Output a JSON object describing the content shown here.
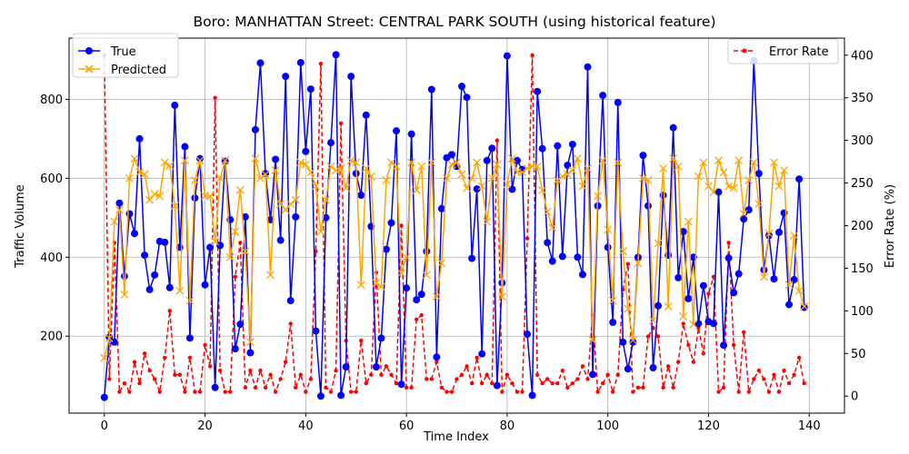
{
  "chart_data": {
    "type": "line",
    "title": "Boro: MANHATTAN Street: CENTRAL PARK SOUTH (using historical feature)",
    "xlabel": "Time Index",
    "ylabel": "Traffic Volume",
    "y2label": "Error Rate (%)",
    "xlim": [
      -7,
      147
    ],
    "ylim": [
      5,
      955
    ],
    "y2lim": [
      -20,
      420
    ],
    "xticks": [
      0,
      20,
      40,
      60,
      80,
      100,
      120,
      140
    ],
    "yticks": [
      200,
      400,
      600,
      800
    ],
    "y2ticks": [
      0,
      50,
      100,
      150,
      200,
      250,
      300,
      350,
      400
    ],
    "grid": true,
    "legend_left": {
      "position": "upper-left",
      "entries": [
        "True",
        "Predicted"
      ]
    },
    "legend_right": {
      "position": "upper-right",
      "entries": [
        "Error Rate"
      ]
    },
    "series": [
      {
        "name": "True",
        "axis": "left",
        "color": "#0000ff",
        "marker": "circle",
        "linestyle": "solid",
        "values": [
          45,
          197,
          185,
          537,
          352,
          510,
          460,
          700,
          405,
          318,
          355,
          440,
          438,
          323,
          785,
          425,
          680,
          195,
          550,
          650,
          330,
          425,
          70,
          430,
          643,
          495,
          168,
          230,
          502,
          158,
          723,
          892,
          612,
          495,
          648,
          443,
          858,
          290,
          502,
          893,
          668,
          826,
          213,
          48,
          500,
          690,
          913,
          50,
          122,
          858,
          612,
          557,
          760,
          478,
          122,
          195,
          420,
          487,
          720,
          78,
          322,
          712,
          292,
          306,
          415,
          825,
          147,
          523,
          652,
          660,
          630,
          833,
          805,
          397,
          573,
          155,
          645,
          676,
          75,
          335,
          910,
          572,
          645,
          622,
          205,
          50,
          820,
          675,
          437,
          390,
          682,
          402,
          633,
          686,
          400,
          356,
          882,
          103,
          530,
          810,
          425,
          235,
          792,
          185,
          117,
          185,
          400,
          658,
          530,
          120,
          277,
          557,
          405,
          728,
          348,
          465,
          295,
          400,
          232,
          328,
          237,
          232,
          565,
          177,
          398,
          310,
          358,
          497,
          520,
          898,
          612,
          368,
          455,
          345,
          463,
          512,
          280,
          343,
          598,
          273
        ]
      },
      {
        "name": "Predicted",
        "axis": "left",
        "color": "#ffa500",
        "marker": "x",
        "linestyle": "solid",
        "values": [
          145,
          195,
          490,
          520,
          305,
          600,
          650,
          615,
          610,
          545,
          560,
          555,
          640,
          632,
          530,
          315,
          645,
          290,
          595,
          645,
          555,
          555,
          440,
          600,
          645,
          400,
          465,
          570,
          415,
          185,
          650,
          600,
          610,
          355,
          620,
          535,
          520,
          535,
          545,
          640,
          635,
          615,
          580,
          465,
          545,
          630,
          620,
          625,
          575,
          645,
          640,
          330,
          625,
          605,
          335,
          325,
          595,
          640,
          630,
          360,
          400,
          640,
          570,
          630,
          355,
          640,
          300,
          385,
          600,
          635,
          640,
          610,
          575,
          600,
          640,
          580,
          490,
          600,
          635,
          300,
          585,
          650,
          615,
          615,
          625,
          630,
          630,
          570,
          515,
          475,
          595,
          605,
          610,
          620,
          650,
          580,
          625,
          190,
          555,
          645,
          470,
          290,
          640,
          415,
          270,
          190,
          385,
          600,
          595,
          240,
          435,
          625,
          275,
          650,
          630,
          250,
          490,
          230,
          605,
          640,
          580,
          565,
          645,
          615,
          580,
          575,
          645,
          510,
          595,
          640,
          535,
          350,
          460,
          640,
          580,
          620,
          330,
          455,
          315,
          275
        ]
      },
      {
        "name": "Error Rate",
        "axis": "right",
        "color": "#ff0000",
        "marker": "circle",
        "linestyle": "dashed",
        "values": [
          400,
          20,
          180,
          5,
          15,
          5,
          40,
          15,
          50,
          30,
          20,
          5,
          45,
          100,
          25,
          25,
          5,
          45,
          5,
          5,
          60,
          35,
          350,
          30,
          5,
          5,
          140,
          180,
          10,
          30,
          10,
          30,
          10,
          25,
          5,
          20,
          40,
          85,
          10,
          25,
          5,
          20,
          170,
          390,
          10,
          5,
          30,
          320,
          65,
          5,
          5,
          65,
          15,
          25,
          145,
          25,
          35,
          25,
          15,
          200,
          10,
          10,
          90,
          95,
          20,
          20,
          40,
          10,
          5,
          5,
          20,
          25,
          35,
          15,
          45,
          15,
          25,
          15,
          300,
          5,
          25,
          15,
          5,
          5,
          185,
          400,
          25,
          15,
          20,
          15,
          15,
          30,
          10,
          15,
          20,
          35,
          20,
          95,
          5,
          15,
          25,
          5,
          25,
          125,
          155,
          5,
          10,
          10,
          70,
          80,
          70,
          10,
          35,
          10,
          40,
          85,
          60,
          40,
          80,
          50,
          120,
          140,
          5,
          10,
          180,
          60,
          5,
          75,
          5,
          20,
          30,
          20,
          5,
          25,
          5,
          30,
          15,
          25,
          45,
          15
        ]
      }
    ]
  }
}
